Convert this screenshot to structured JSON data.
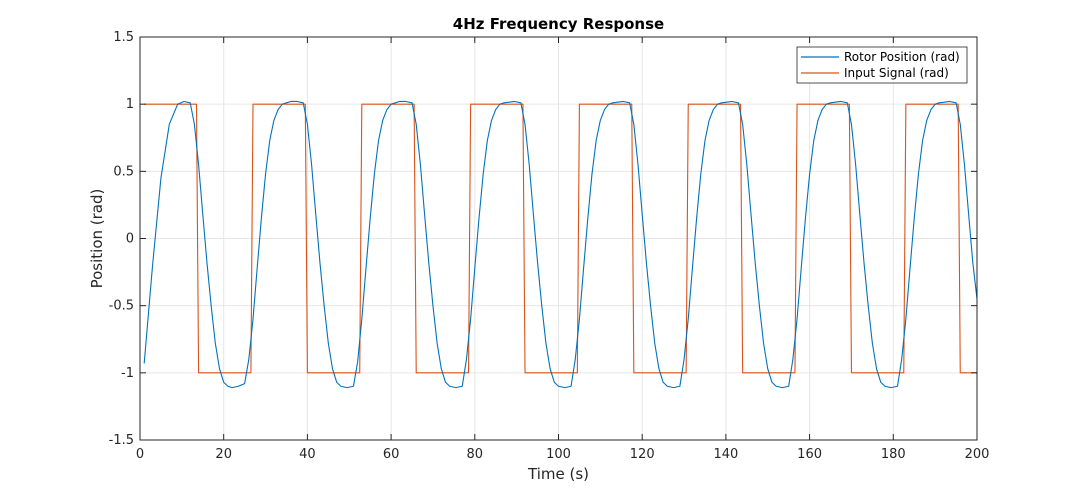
{
  "chart_data": {
    "type": "line",
    "title": "4Hz Frequency Response",
    "xlabel": "Time (s)",
    "ylabel": "Position (rad)",
    "xlim": [
      0,
      200
    ],
    "ylim": [
      -1.5,
      1.5
    ],
    "xticks": [
      0,
      20,
      40,
      60,
      80,
      100,
      120,
      140,
      160,
      180,
      200
    ],
    "yticks": [
      -1.5,
      -1,
      -0.5,
      0,
      0.5,
      1,
      1.5
    ],
    "xtick_labels": [
      "0",
      "20",
      "40",
      "60",
      "80",
      "100",
      "120",
      "140",
      "160",
      "180",
      "200"
    ],
    "ytick_labels": [
      "-1.5",
      "-1",
      "-0.5",
      "0",
      "0.5",
      "1",
      "1.5"
    ],
    "grid": true,
    "legend_position": "top-right",
    "series": [
      {
        "name": "Rotor Position (rad)",
        "color": "#0072bd",
        "x": [
          1,
          3,
          5,
          7,
          9,
          10.5,
          12,
          13,
          14,
          15,
          16,
          17,
          18,
          19,
          20,
          21,
          22,
          23.5,
          25,
          26,
          27,
          28,
          29,
          30,
          31,
          32,
          33,
          34,
          35,
          36,
          37.5,
          39,
          40,
          41,
          42,
          43,
          44,
          45,
          46,
          47,
          48,
          49.5,
          51,
          52,
          53,
          54,
          55,
          56,
          57,
          58,
          59,
          60,
          61,
          62,
          63.5,
          65,
          66,
          67,
          68,
          69,
          70,
          71,
          72,
          73,
          74,
          75.5,
          77,
          78,
          79,
          80,
          81,
          82,
          83,
          84,
          85,
          86,
          87,
          89.5,
          91,
          92,
          93,
          94,
          95,
          96,
          97,
          98,
          99,
          100,
          101.5,
          103,
          104,
          105,
          106,
          107,
          108,
          109,
          110,
          111,
          112,
          113,
          115.5,
          117,
          118,
          119,
          120,
          121,
          122,
          123,
          124,
          125,
          126,
          127.5,
          129,
          130,
          131,
          132,
          133,
          134,
          135,
          136,
          137,
          138,
          139,
          141.5,
          143,
          144,
          145,
          146,
          147,
          148,
          149,
          150,
          151,
          152,
          153.5,
          155,
          156,
          157,
          158,
          159,
          160,
          161,
          162,
          163,
          164,
          165,
          167.5,
          169,
          170,
          171,
          172,
          173,
          174,
          175,
          176,
          177,
          178,
          179.5,
          181,
          182,
          183,
          184,
          185,
          186,
          187,
          188,
          189,
          190,
          191,
          193.5,
          195,
          196,
          197,
          198,
          199,
          200
        ],
        "values": [
          -0.93,
          -0.2,
          0.45,
          0.85,
          1.0,
          1.02,
          1.01,
          0.85,
          0.55,
          0.18,
          -0.18,
          -0.5,
          -0.78,
          -0.97,
          -1.07,
          -1.1,
          -1.11,
          -1.1,
          -1.08,
          -0.9,
          -0.6,
          -0.22,
          0.15,
          0.48,
          0.73,
          0.88,
          0.96,
          1.0,
          1.01,
          1.02,
          1.02,
          1.01,
          0.85,
          0.55,
          0.18,
          -0.18,
          -0.5,
          -0.78,
          -0.97,
          -1.07,
          -1.1,
          -1.11,
          -1.1,
          -0.92,
          -0.6,
          -0.22,
          0.15,
          0.48,
          0.73,
          0.88,
          0.96,
          1.0,
          1.01,
          1.02,
          1.02,
          1.01,
          0.85,
          0.55,
          0.18,
          -0.18,
          -0.5,
          -0.78,
          -0.97,
          -1.07,
          -1.1,
          -1.11,
          -1.1,
          -0.9,
          -0.6,
          -0.22,
          0.15,
          0.48,
          0.73,
          0.88,
          0.96,
          1.0,
          1.01,
          1.02,
          1.01,
          0.85,
          0.55,
          0.18,
          -0.18,
          -0.5,
          -0.78,
          -0.97,
          -1.07,
          -1.1,
          -1.11,
          -1.1,
          -0.9,
          -0.6,
          -0.22,
          0.15,
          0.48,
          0.73,
          0.88,
          0.96,
          1.0,
          1.01,
          1.02,
          1.01,
          0.85,
          0.55,
          0.18,
          -0.18,
          -0.5,
          -0.78,
          -0.97,
          -1.07,
          -1.1,
          -1.11,
          -1.1,
          -0.9,
          -0.6,
          -0.22,
          0.15,
          0.48,
          0.73,
          0.88,
          0.96,
          1.0,
          1.01,
          1.02,
          1.01,
          0.85,
          0.55,
          0.18,
          -0.18,
          -0.5,
          -0.78,
          -0.97,
          -1.07,
          -1.1,
          -1.11,
          -1.1,
          -0.9,
          -0.6,
          -0.22,
          0.15,
          0.48,
          0.73,
          0.88,
          0.96,
          1.0,
          1.01,
          1.02,
          1.01,
          0.85,
          0.55,
          0.18,
          -0.18,
          -0.5,
          -0.78,
          -0.97,
          -1.07,
          -1.1,
          -1.11,
          -1.1,
          -0.9,
          -0.6,
          -0.22,
          0.15,
          0.48,
          0.73,
          0.88,
          0.96,
          1.0,
          1.01,
          1.02,
          1.01,
          0.85,
          0.55,
          0.18,
          -0.18,
          -0.45
        ]
      },
      {
        "name": "Input Signal (rad)",
        "color": "#d95319",
        "x": [
          1,
          13.5,
          14,
          26.5,
          27,
          39.5,
          40,
          52.5,
          53,
          65.5,
          66,
          78.5,
          79,
          91.5,
          92,
          104.5,
          105,
          117.5,
          118,
          130.5,
          131,
          143.5,
          144,
          156.5,
          157,
          169.5,
          170,
          182.5,
          183,
          195.5,
          196,
          200
        ],
        "values": [
          1,
          1,
          -1,
          -1,
          1,
          1,
          -1,
          -1,
          1,
          1,
          -1,
          -1,
          1,
          1,
          -1,
          -1,
          1,
          1,
          -1,
          -1,
          1,
          1,
          -1,
          -1,
          1,
          1,
          -1,
          -1,
          1,
          1,
          -1,
          -1
        ]
      }
    ]
  }
}
